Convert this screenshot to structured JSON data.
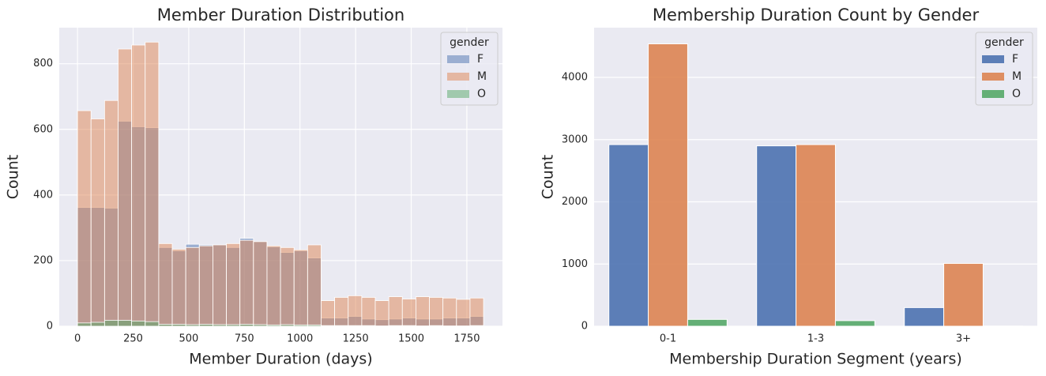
{
  "chart_data": [
    {
      "type": "histogram",
      "title": "Member Duration Distribution",
      "x_label": "Member Duration (days)",
      "y_label": "Count",
      "legend_title": "gender",
      "legend": "upper right",
      "grid": "both",
      "alpha": 0.5,
      "bins": [
        0,
        60.8,
        121.7,
        182.5,
        243.3,
        304.2,
        365,
        425.8,
        486.7,
        547.5,
        608.3,
        669.2,
        730,
        790.8,
        851.7,
        912.5,
        973.3,
        1034.2,
        1095,
        1155.8,
        1216.7,
        1277.5,
        1338.3,
        1399.2,
        1460,
        1520.8,
        1581.7,
        1642.5,
        1703.3,
        1764.2,
        1825
      ],
      "series": [
        {
          "name": "F",
          "color": "#4c72b0",
          "values": [
            362,
            362,
            360,
            625,
            608,
            605,
            240,
            230,
            250,
            248,
            248,
            240,
            268,
            258,
            242,
            225,
            230,
            208,
            25,
            25,
            30,
            22,
            20,
            22,
            25,
            22,
            22,
            25,
            25,
            30
          ]
        },
        {
          "name": "M",
          "color": "#dd8452",
          "values": [
            657,
            632,
            688,
            845,
            857,
            866,
            252,
            235,
            240,
            245,
            248,
            252,
            262,
            258,
            245,
            240,
            233,
            248,
            78,
            88,
            93,
            88,
            78,
            90,
            83,
            90,
            88,
            86,
            82,
            86
          ]
        },
        {
          "name": "O",
          "color": "#55a868",
          "values": [
            10,
            12,
            18,
            18,
            16,
            14,
            6,
            6,
            5,
            6,
            5,
            5,
            6,
            5,
            4,
            5,
            4,
            4,
            2,
            2,
            2,
            2,
            1,
            2,
            2,
            1,
            2,
            1,
            1,
            2
          ]
        }
      ],
      "xlim": [
        -82,
        1910
      ],
      "xticks": [
        0,
        250,
        500,
        750,
        1000,
        1250,
        1500,
        1750
      ],
      "ylim": [
        0,
        910
      ],
      "yticks": [
        0,
        200,
        400,
        600,
        800
      ]
    },
    {
      "type": "bar",
      "title": "Membership Duration Count by Gender",
      "x_label": "Membership Duration Segment (years)",
      "y_label": "Count",
      "legend_title": "gender",
      "legend": "upper right",
      "grid": "y",
      "categories": [
        "0-1",
        "1-3",
        "3+"
      ],
      "series": [
        {
          "name": "F",
          "color": "#4c72b0",
          "values": [
            2920,
            2900,
            300
          ]
        },
        {
          "name": "M",
          "color": "#dd8452",
          "values": [
            4540,
            2920,
            1010
          ]
        },
        {
          "name": "O",
          "color": "#55a868",
          "values": [
            110,
            90,
            3
          ]
        }
      ],
      "ylim": [
        0,
        4800
      ],
      "yticks": [
        0,
        1000,
        2000,
        3000,
        4000
      ]
    }
  ]
}
